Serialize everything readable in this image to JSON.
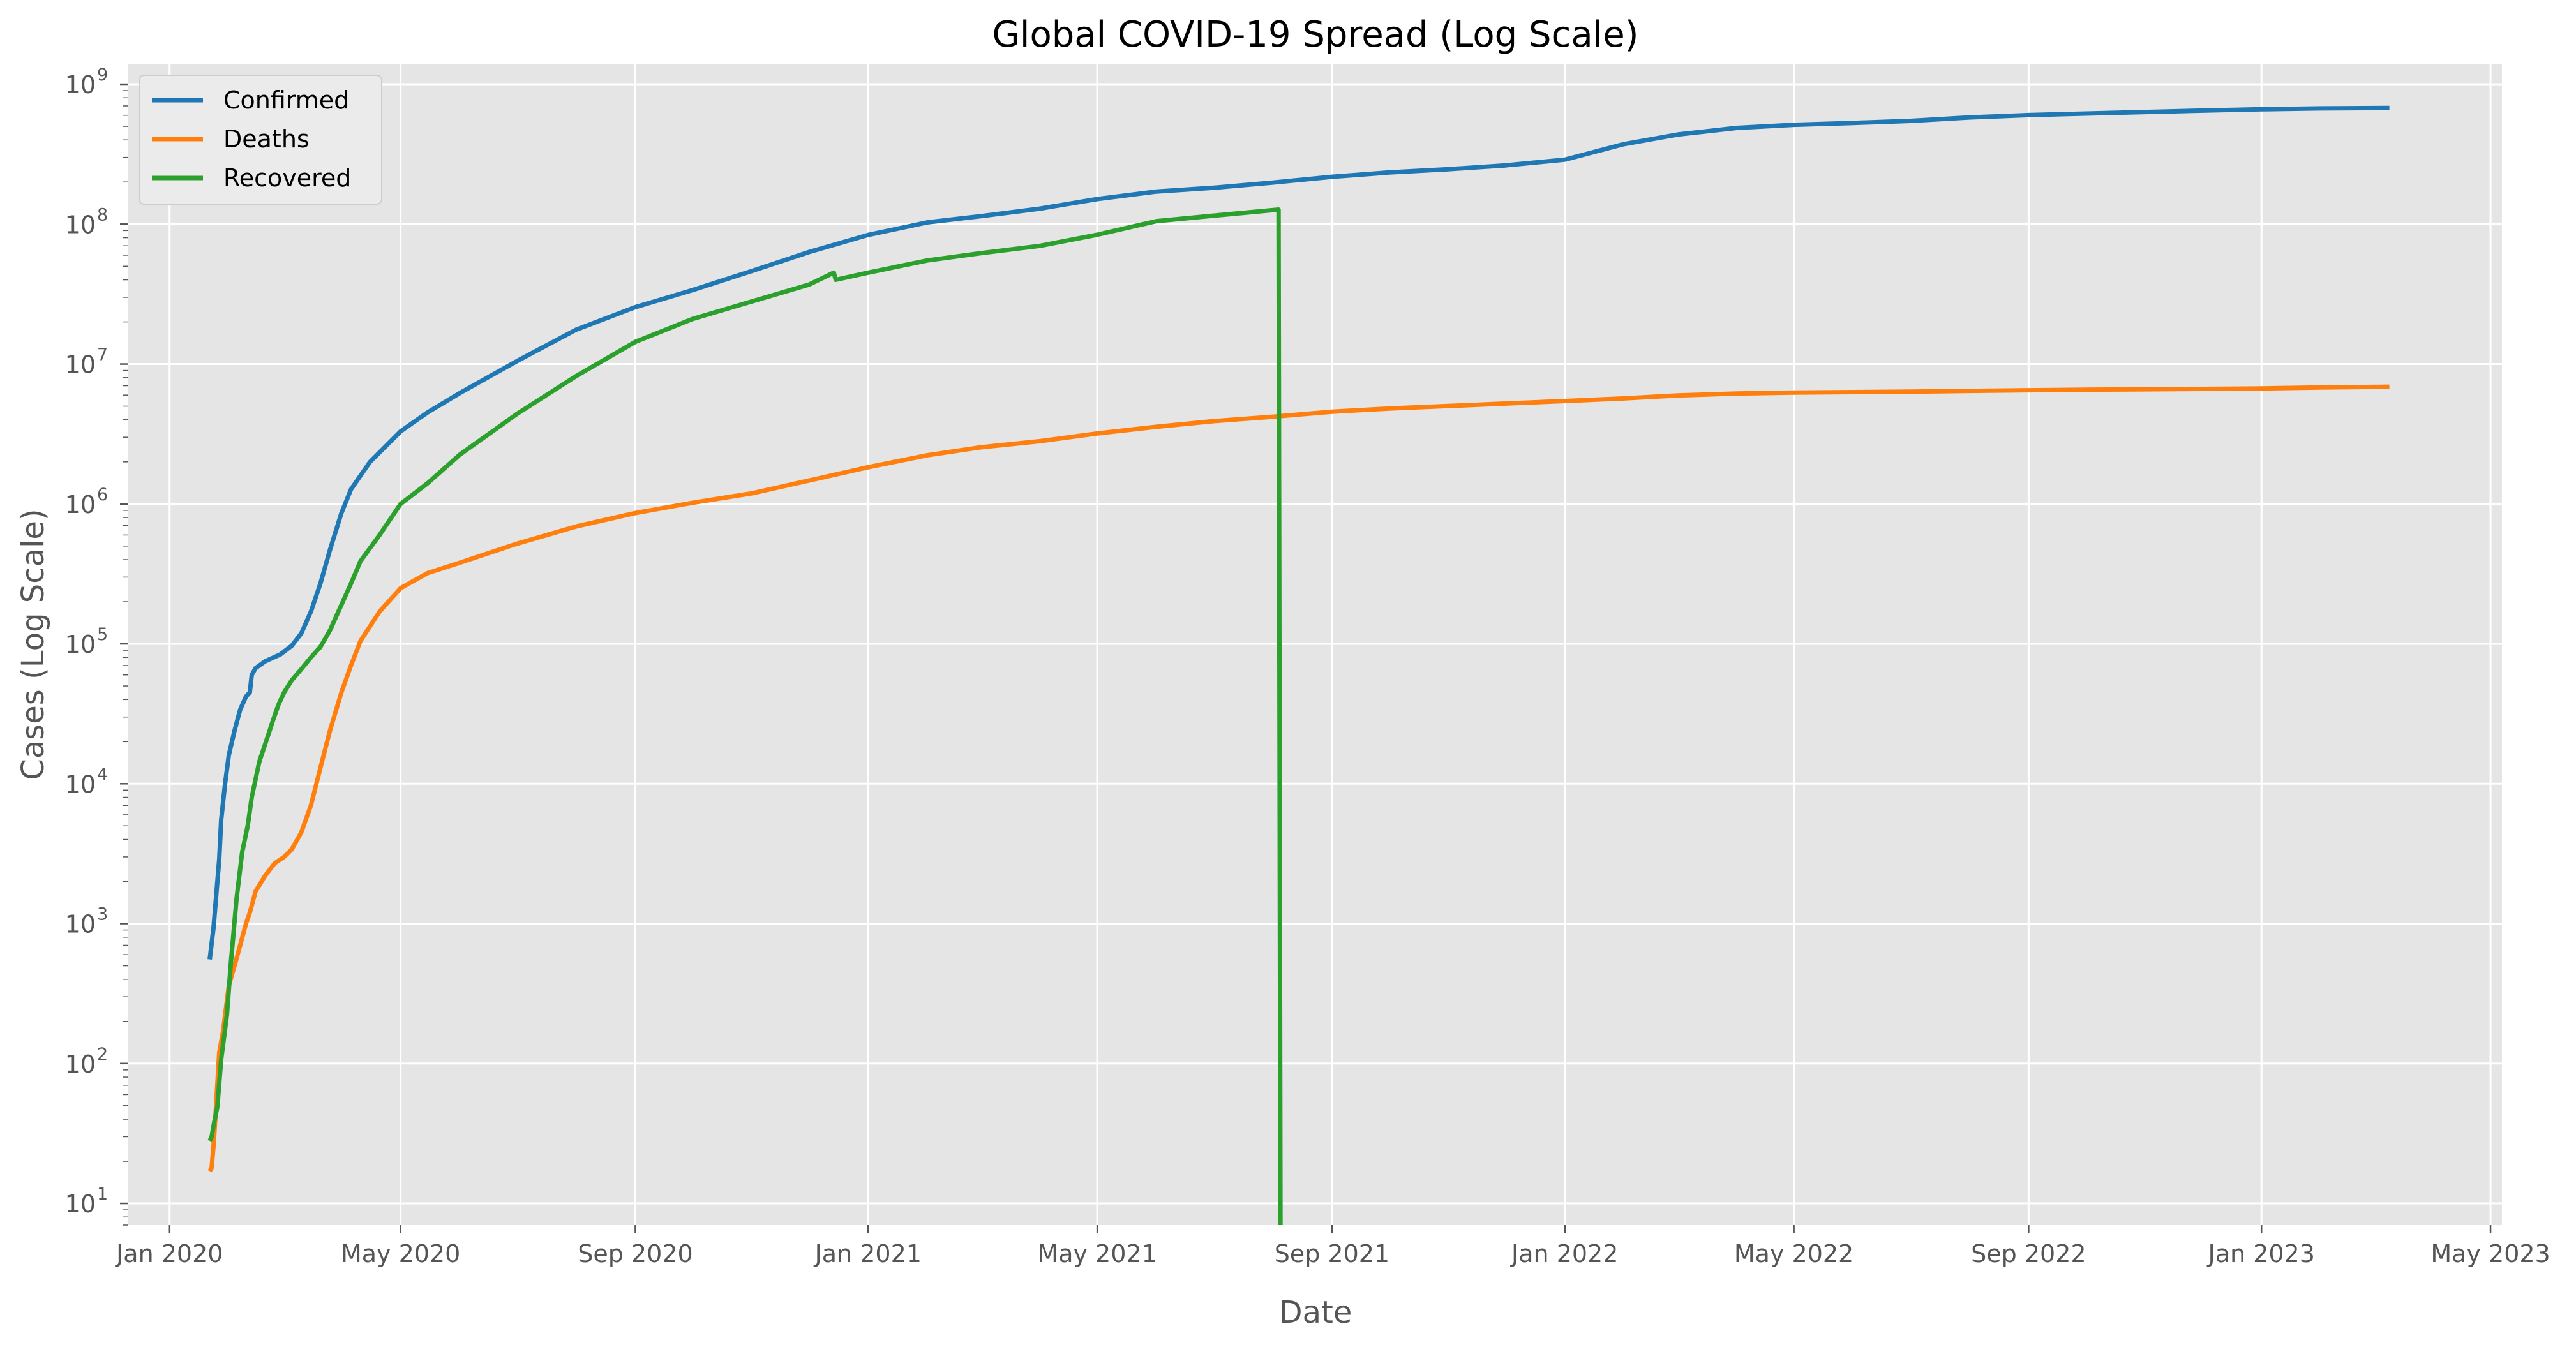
{
  "chart_data": {
    "type": "line",
    "title": "Global COVID-19 Spread (Log Scale)",
    "xlabel": "Date",
    "ylabel": "Cases (Log Scale)",
    "y_scale": "log",
    "ylim": [
      7,
      1400000000
    ],
    "xlim": [
      "2019-12-10",
      "2023-05-07"
    ],
    "grid": true,
    "legend_position": "top-left",
    "x_ticks": [
      {
        "date": "2020-01-01",
        "label": "Jan 2020"
      },
      {
        "date": "2020-05-01",
        "label": "May 2020"
      },
      {
        "date": "2020-09-01",
        "label": "Sep 2020"
      },
      {
        "date": "2021-01-01",
        "label": "Jan 2021"
      },
      {
        "date": "2021-05-01",
        "label": "May 2021"
      },
      {
        "date": "2021-09-01",
        "label": "Sep 2021"
      },
      {
        "date": "2022-01-01",
        "label": "Jan 2022"
      },
      {
        "date": "2022-05-01",
        "label": "May 2022"
      },
      {
        "date": "2022-09-01",
        "label": "Sep 2022"
      },
      {
        "date": "2023-01-01",
        "label": "Jan 2023"
      },
      {
        "date": "2023-05-01",
        "label": "May 2023"
      }
    ],
    "y_ticks": [
      {
        "value": 10,
        "base": "10",
        "exp": "1"
      },
      {
        "value": 100,
        "base": "10",
        "exp": "2"
      },
      {
        "value": 1000,
        "base": "10",
        "exp": "3"
      },
      {
        "value": 10000,
        "base": "10",
        "exp": "4"
      },
      {
        "value": 100000,
        "base": "10",
        "exp": "5"
      },
      {
        "value": 1000000,
        "base": "10",
        "exp": "6"
      },
      {
        "value": 10000000,
        "base": "10",
        "exp": "7"
      },
      {
        "value": 100000000,
        "base": "10",
        "exp": "8"
      },
      {
        "value": 1000000000,
        "base": "10",
        "exp": "9"
      }
    ],
    "series": [
      {
        "name": "Confirmed",
        "color": "#1f77b4",
        "points": [
          [
            "2020-01-22",
            555
          ],
          [
            "2020-01-24",
            940
          ],
          [
            "2020-01-27",
            2900
          ],
          [
            "2020-01-28",
            5500
          ],
          [
            "2020-01-30",
            9900
          ],
          [
            "2020-02-01",
            16000
          ],
          [
            "2020-02-04",
            24000
          ],
          [
            "2020-02-07",
            34000
          ],
          [
            "2020-02-10",
            42000
          ],
          [
            "2020-02-12",
            45000
          ],
          [
            "2020-02-13",
            60000
          ],
          [
            "2020-02-15",
            67000
          ],
          [
            "2020-02-20",
            75000
          ],
          [
            "2020-02-28",
            84000
          ],
          [
            "2020-03-05",
            97000
          ],
          [
            "2020-03-10",
            119000
          ],
          [
            "2020-03-15",
            170000
          ],
          [
            "2020-03-20",
            270000
          ],
          [
            "2020-03-25",
            470000
          ],
          [
            "2020-03-31",
            860000
          ],
          [
            "2020-04-05",
            1270000
          ],
          [
            "2020-04-15",
            2000000
          ],
          [
            "2020-05-01",
            3300000
          ],
          [
            "2020-05-15",
            4500000
          ],
          [
            "2020-06-01",
            6200000
          ],
          [
            "2020-07-01",
            10500000
          ],
          [
            "2020-08-01",
            17600000
          ],
          [
            "2020-09-01",
            25500000
          ],
          [
            "2020-10-01",
            33800000
          ],
          [
            "2020-11-01",
            46200000
          ],
          [
            "2020-12-01",
            63200000
          ],
          [
            "2021-01-01",
            83700000
          ],
          [
            "2021-02-01",
            103000000
          ],
          [
            "2021-03-01",
            114000000
          ],
          [
            "2021-04-01",
            129000000
          ],
          [
            "2021-05-01",
            151000000
          ],
          [
            "2021-06-01",
            171000000
          ],
          [
            "2021-07-01",
            182000000
          ],
          [
            "2021-08-01",
            198000000
          ],
          [
            "2021-09-01",
            218000000
          ],
          [
            "2021-10-01",
            234000000
          ],
          [
            "2021-11-01",
            247000000
          ],
          [
            "2021-12-01",
            263000000
          ],
          [
            "2022-01-01",
            289000000
          ],
          [
            "2022-02-01",
            373000000
          ],
          [
            "2022-03-01",
            437000000
          ],
          [
            "2022-04-01",
            487000000
          ],
          [
            "2022-05-01",
            513000000
          ],
          [
            "2022-06-01",
            529000000
          ],
          [
            "2022-07-01",
            547000000
          ],
          [
            "2022-08-01",
            579000000
          ],
          [
            "2022-09-01",
            602000000
          ],
          [
            "2022-10-01",
            617000000
          ],
          [
            "2022-11-01",
            633000000
          ],
          [
            "2022-12-01",
            648000000
          ],
          [
            "2023-01-01",
            662000000
          ],
          [
            "2023-02-01",
            672000000
          ],
          [
            "2023-03-09",
            676000000
          ]
        ]
      },
      {
        "name": "Deaths",
        "color": "#ff7f0e",
        "points": [
          [
            "2020-01-22",
            17
          ],
          [
            "2020-01-23",
            18
          ],
          [
            "2020-01-24",
            26
          ],
          [
            "2020-01-25",
            42
          ],
          [
            "2020-01-27",
            120
          ],
          [
            "2020-01-29",
            170
          ],
          [
            "2020-02-01",
            360
          ],
          [
            "2020-02-05",
            560
          ],
          [
            "2020-02-10",
            1000
          ],
          [
            "2020-02-12",
            1200
          ],
          [
            "2020-02-15",
            1700
          ],
          [
            "2020-02-20",
            2200
          ],
          [
            "2020-02-25",
            2700
          ],
          [
            "2020-03-01",
            3000
          ],
          [
            "2020-03-05",
            3400
          ],
          [
            "2020-03-10",
            4500
          ],
          [
            "2020-03-15",
            7000
          ],
          [
            "2020-03-20",
            13000
          ],
          [
            "2020-03-25",
            24000
          ],
          [
            "2020-03-31",
            45000
          ],
          [
            "2020-04-05",
            70000
          ],
          [
            "2020-04-10",
            105000
          ],
          [
            "2020-04-20",
            170000
          ],
          [
            "2020-05-01",
            250000
          ],
          [
            "2020-05-15",
            320000
          ],
          [
            "2020-06-01",
            380000
          ],
          [
            "2020-07-01",
            520000
          ],
          [
            "2020-08-01",
            690000
          ],
          [
            "2020-09-01",
            860000
          ],
          [
            "2020-10-01",
            1020000
          ],
          [
            "2020-11-01",
            1190000
          ],
          [
            "2020-12-01",
            1470000
          ],
          [
            "2021-01-01",
            1830000
          ],
          [
            "2021-02-01",
            2230000
          ],
          [
            "2021-03-01",
            2540000
          ],
          [
            "2021-04-01",
            2810000
          ],
          [
            "2021-05-01",
            3190000
          ],
          [
            "2021-06-01",
            3560000
          ],
          [
            "2021-07-01",
            3910000
          ],
          [
            "2021-08-01",
            4200000
          ],
          [
            "2021-09-01",
            4560000
          ],
          [
            "2021-10-01",
            4810000
          ],
          [
            "2021-11-01",
            5010000
          ],
          [
            "2021-12-01",
            5220000
          ],
          [
            "2022-01-01",
            5440000
          ],
          [
            "2022-02-01",
            5680000
          ],
          [
            "2022-03-01",
            5960000
          ],
          [
            "2022-04-01",
            6160000
          ],
          [
            "2022-05-01",
            6250000
          ],
          [
            "2022-06-01",
            6300000
          ],
          [
            "2022-07-01",
            6350000
          ],
          [
            "2022-08-01",
            6430000
          ],
          [
            "2022-09-01",
            6500000
          ],
          [
            "2022-10-01",
            6560000
          ],
          [
            "2022-11-01",
            6600000
          ],
          [
            "2022-12-01",
            6640000
          ],
          [
            "2023-01-01",
            6700000
          ],
          [
            "2023-02-01",
            6800000
          ],
          [
            "2023-03-09",
            6880000
          ]
        ]
      },
      {
        "name": "Recovered",
        "color": "#2ca02c",
        "points": [
          [
            "2020-01-22",
            28
          ],
          [
            "2020-01-23",
            30
          ],
          [
            "2020-01-24",
            36
          ],
          [
            "2020-01-26",
            49
          ],
          [
            "2020-01-28",
            107
          ],
          [
            "2020-01-31",
            222
          ],
          [
            "2020-02-02",
            510
          ],
          [
            "2020-02-05",
            1490
          ],
          [
            "2020-02-08",
            3240
          ],
          [
            "2020-02-11",
            5100
          ],
          [
            "2020-02-13",
            8000
          ],
          [
            "2020-02-17",
            14400
          ],
          [
            "2020-02-21",
            21000
          ],
          [
            "2020-02-24",
            28000
          ],
          [
            "2020-02-27",
            36700
          ],
          [
            "2020-03-01",
            45000
          ],
          [
            "2020-03-05",
            55000
          ],
          [
            "2020-03-10",
            66000
          ],
          [
            "2020-03-15",
            80000
          ],
          [
            "2020-03-20",
            95000
          ],
          [
            "2020-03-25",
            125000
          ],
          [
            "2020-03-31",
            190000
          ],
          [
            "2020-04-05",
            270000
          ],
          [
            "2020-04-10",
            390000
          ],
          [
            "2020-04-20",
            600000
          ],
          [
            "2020-05-01",
            1000000
          ],
          [
            "2020-05-15",
            1400000
          ],
          [
            "2020-06-01",
            2250000
          ],
          [
            "2020-07-01",
            4400000
          ],
          [
            "2020-08-01",
            8200000
          ],
          [
            "2020-09-01",
            14400000
          ],
          [
            "2020-10-01",
            21000000
          ],
          [
            "2020-11-01",
            28000000
          ],
          [
            "2020-12-01",
            37000000
          ],
          [
            "2020-12-14",
            45000000
          ],
          [
            "2020-12-15",
            40000000
          ],
          [
            "2021-01-01",
            45000000
          ],
          [
            "2021-02-01",
            55000000
          ],
          [
            "2021-03-01",
            62000000
          ],
          [
            "2021-04-01",
            70000000
          ],
          [
            "2021-05-01",
            84000000
          ],
          [
            "2021-06-01",
            105000000
          ],
          [
            "2021-07-01",
            115000000
          ],
          [
            "2021-08-04",
            127000000
          ],
          [
            "2021-08-05",
            0
          ]
        ]
      }
    ]
  }
}
